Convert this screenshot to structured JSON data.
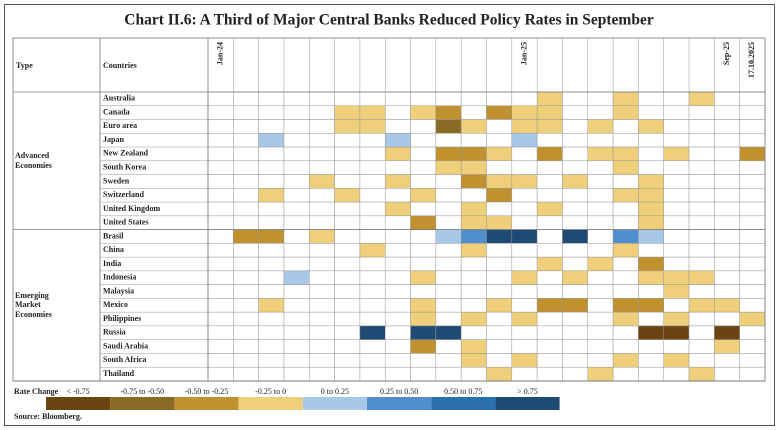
{
  "title": "Chart II.6: A Third of Major Central Banks Reduced Policy Rates in September",
  "header": {
    "type": "Type",
    "countries": "Countries",
    "column_labels": [
      "Jan-24",
      null,
      null,
      null,
      null,
      null,
      null,
      null,
      null,
      null,
      null,
      null,
      "Jan-25",
      null,
      null,
      null,
      null,
      null,
      null,
      null,
      "Sep-25",
      "17.10.2025"
    ]
  },
  "groups": [
    {
      "type": "Advanced Economies",
      "rows": [
        {
          "country": "Australia",
          "cells": [
            null,
            null,
            null,
            null,
            null,
            null,
            null,
            null,
            null,
            null,
            null,
            null,
            null,
            3,
            null,
            null,
            3,
            null,
            null,
            3,
            null,
            null
          ]
        },
        {
          "country": "Canada",
          "cells": [
            null,
            null,
            null,
            null,
            null,
            3,
            3,
            null,
            3,
            2,
            null,
            2,
            3,
            3,
            null,
            null,
            3,
            null,
            null,
            null,
            null,
            null
          ]
        },
        {
          "country": "Euro area",
          "cells": [
            null,
            null,
            null,
            null,
            null,
            3,
            3,
            null,
            null,
            1,
            3,
            null,
            3,
            3,
            null,
            3,
            null,
            3,
            null,
            null,
            null,
            null
          ]
        },
        {
          "country": "Japan",
          "cells": [
            null,
            null,
            4,
            null,
            null,
            null,
            null,
            4,
            null,
            null,
            null,
            null,
            4,
            null,
            null,
            null,
            null,
            null,
            null,
            null,
            null,
            null
          ]
        },
        {
          "country": "New Zealand",
          "cells": [
            null,
            null,
            null,
            null,
            null,
            null,
            null,
            3,
            null,
            2,
            2,
            3,
            null,
            2,
            null,
            3,
            3,
            null,
            3,
            null,
            null,
            2
          ]
        },
        {
          "country": "South Korea",
          "cells": [
            null,
            null,
            null,
            null,
            null,
            null,
            null,
            null,
            null,
            3,
            3,
            null,
            null,
            null,
            null,
            null,
            3,
            null,
            null,
            null,
            null,
            null
          ]
        },
        {
          "country": "Sweden",
          "cells": [
            null,
            null,
            null,
            null,
            3,
            null,
            null,
            3,
            null,
            null,
            2,
            3,
            3,
            null,
            3,
            null,
            null,
            3,
            null,
            null,
            null,
            null
          ]
        },
        {
          "country": "Switzerland",
          "cells": [
            null,
            null,
            3,
            null,
            null,
            3,
            null,
            null,
            3,
            null,
            null,
            2,
            null,
            null,
            null,
            null,
            3,
            3,
            null,
            null,
            null,
            null
          ]
        },
        {
          "country": "United Kingdom",
          "cells": [
            null,
            null,
            null,
            null,
            null,
            null,
            null,
            3,
            null,
            null,
            3,
            null,
            null,
            3,
            null,
            null,
            null,
            3,
            null,
            null,
            null,
            null
          ]
        },
        {
          "country": "United States",
          "cells": [
            null,
            null,
            null,
            null,
            null,
            null,
            null,
            null,
            2,
            null,
            3,
            3,
            null,
            null,
            null,
            null,
            null,
            3,
            null,
            null,
            null,
            null
          ]
        }
      ]
    },
    {
      "type": "Emerging Market Economies",
      "rows": [
        {
          "country": "Brasil",
          "cells": [
            null,
            2,
            2,
            null,
            3,
            null,
            null,
            null,
            null,
            4,
            5,
            7,
            7,
            null,
            7,
            null,
            5,
            4,
            null,
            null,
            null,
            null
          ]
        },
        {
          "country": "China",
          "cells": [
            null,
            null,
            null,
            null,
            null,
            null,
            3,
            null,
            null,
            null,
            3,
            null,
            null,
            null,
            null,
            null,
            3,
            null,
            null,
            null,
            null,
            null
          ]
        },
        {
          "country": "India",
          "cells": [
            null,
            null,
            null,
            null,
            null,
            null,
            null,
            null,
            null,
            null,
            null,
            null,
            null,
            3,
            null,
            3,
            null,
            2,
            null,
            null,
            null,
            null
          ]
        },
        {
          "country": "Indonesia",
          "cells": [
            null,
            null,
            null,
            4,
            null,
            null,
            null,
            null,
            3,
            null,
            null,
            null,
            3,
            null,
            3,
            null,
            null,
            3,
            3,
            3,
            null,
            null
          ]
        },
        {
          "country": "Malaysia",
          "cells": [
            null,
            null,
            null,
            null,
            null,
            null,
            null,
            null,
            null,
            null,
            null,
            null,
            null,
            null,
            null,
            null,
            null,
            null,
            3,
            null,
            null,
            null
          ]
        },
        {
          "country": "Mexico",
          "cells": [
            null,
            null,
            3,
            null,
            null,
            null,
            null,
            null,
            3,
            null,
            null,
            3,
            null,
            2,
            2,
            null,
            2,
            2,
            null,
            3,
            3,
            null
          ]
        },
        {
          "country": "Philippines",
          "cells": [
            null,
            null,
            null,
            null,
            null,
            null,
            null,
            null,
            3,
            null,
            3,
            null,
            3,
            null,
            null,
            null,
            3,
            null,
            3,
            null,
            null,
            3
          ]
        },
        {
          "country": "Russia",
          "cells": [
            null,
            null,
            null,
            null,
            null,
            null,
            7,
            null,
            7,
            7,
            null,
            null,
            null,
            null,
            null,
            null,
            null,
            0,
            0,
            null,
            0,
            null
          ]
        },
        {
          "country": "Saudi Arabia",
          "cells": [
            null,
            null,
            null,
            null,
            null,
            null,
            null,
            null,
            2,
            null,
            3,
            null,
            null,
            null,
            null,
            null,
            null,
            null,
            null,
            null,
            3,
            null
          ]
        },
        {
          "country": "South Africa",
          "cells": [
            null,
            null,
            null,
            null,
            null,
            null,
            null,
            null,
            null,
            null,
            3,
            null,
            3,
            null,
            null,
            null,
            3,
            null,
            3,
            null,
            null,
            null
          ]
        },
        {
          "country": "Thailand",
          "cells": [
            null,
            null,
            null,
            null,
            null,
            null,
            null,
            null,
            null,
            null,
            null,
            3,
            null,
            null,
            null,
            3,
            null,
            null,
            null,
            3,
            null,
            null
          ]
        }
      ]
    }
  ],
  "legend": {
    "title": "Rate Change",
    "items": [
      {
        "label": "< -0.75",
        "color": "#6b4412"
      },
      {
        "label": "-0.75 to -0.50",
        "color": "#8a6a25"
      },
      {
        "label": "-0.50 to -0.25",
        "color": "#bf912f"
      },
      {
        "label": "-0.25 to 0",
        "color": "#efcf79"
      },
      {
        "label": "0 to 0.25",
        "color": "#a8c8ea"
      },
      {
        "label": "0.25 to 0.50",
        "color": "#4f8fcf"
      },
      {
        "label": "0.50 to 0.75",
        "color": "#2a6fae"
      },
      {
        "label": "> 0.75",
        "color": "#1f4a74"
      }
    ]
  },
  "source": "Source: Bloomberg."
}
